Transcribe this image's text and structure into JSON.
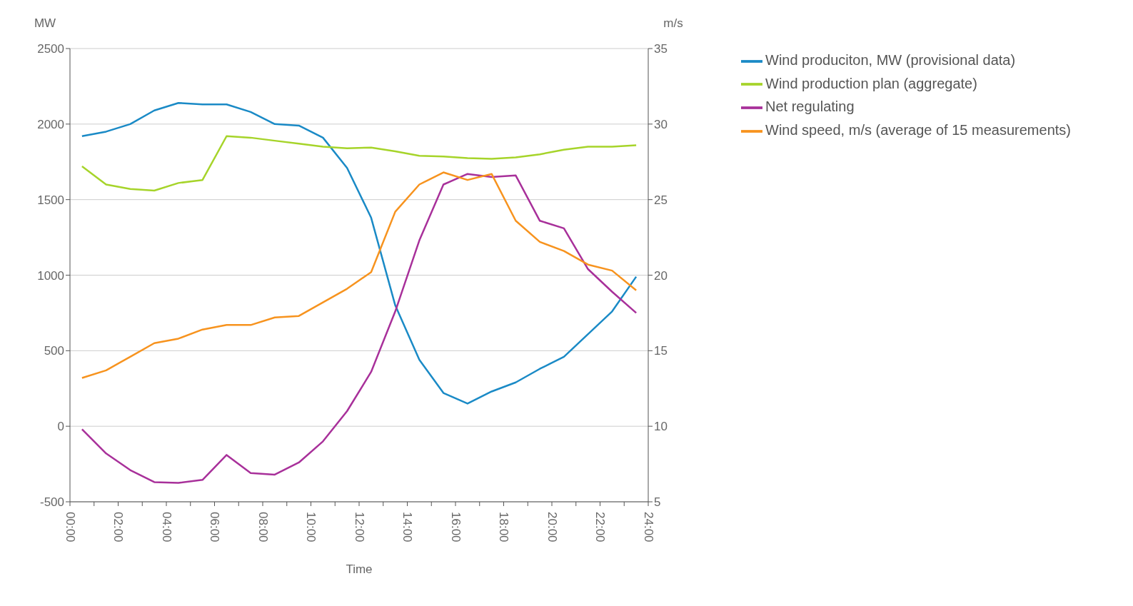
{
  "chart_data": {
    "type": "line",
    "xlabel": "Time",
    "ylabel": "MW",
    "y2label": "m/s",
    "x": [
      0.5,
      1.5,
      2.5,
      3.5,
      4.5,
      5.5,
      6.5,
      7.5,
      8.5,
      9.5,
      10.5,
      11.5,
      12.5,
      13.5,
      14.5,
      15.5,
      16.5,
      17.5,
      18.5,
      19.5,
      20.5,
      21.5,
      22.5,
      23.5
    ],
    "series": [
      {
        "name": "Wind produciton, MW (provisional data)",
        "color": "#1a8ac6",
        "values": [
          1920,
          1950,
          2000,
          2090,
          2140,
          2130,
          2130,
          2080,
          2000,
          1990,
          1910,
          1710,
          1380,
          800,
          440,
          220,
          150,
          230,
          290,
          380,
          460,
          610,
          760,
          990
        ]
      },
      {
        "name": "Wind production plan (aggregate)",
        "color": "#a6d42a",
        "values": [
          1720,
          1600,
          1570,
          1560,
          1610,
          1630,
          1920,
          1910,
          1890,
          1870,
          1850,
          1840,
          1845,
          1820,
          1790,
          1785,
          1775,
          1770,
          1780,
          1800,
          1830,
          1850,
          1850,
          1860
        ]
      },
      {
        "name": "Net regulating",
        "color": "#a8309a",
        "values": [
          -20,
          -180,
          -290,
          -370,
          -375,
          -355,
          -190,
          -310,
          -320,
          -240,
          -100,
          100,
          360,
          760,
          1230,
          1600,
          1670,
          1650,
          1660,
          1360,
          1310,
          1040,
          890,
          750
        ]
      },
      {
        "name": "Wind speed, m/s (average of 15 measurements)",
        "color": "#f7931e",
        "axis": "y2",
        "values": [
          13.2,
          13.7,
          14.6,
          15.5,
          15.8,
          16.4,
          16.7,
          16.7,
          17.2,
          17.3,
          18.2,
          19.1,
          20.2,
          24.2,
          26.0,
          26.8,
          26.3,
          26.7,
          23.6,
          22.2,
          21.6,
          20.7,
          20.3,
          19.0
        ]
      }
    ],
    "xlim": [
      0,
      24
    ],
    "xticks": [
      {
        "value": 0,
        "label": "00:00"
      },
      {
        "value": 1,
        "label": null
      },
      {
        "value": 2,
        "label": "02:00"
      },
      {
        "value": 3,
        "label": null
      },
      {
        "value": 4,
        "label": "04:00"
      },
      {
        "value": 5,
        "label": null
      },
      {
        "value": 6,
        "label": "06:00"
      },
      {
        "value": 7,
        "label": null
      },
      {
        "value": 8,
        "label": "08:00"
      },
      {
        "value": 9,
        "label": null
      },
      {
        "value": 10,
        "label": "10:00"
      },
      {
        "value": 11,
        "label": null
      },
      {
        "value": 12,
        "label": "12:00"
      },
      {
        "value": 13,
        "label": null
      },
      {
        "value": 14,
        "label": "14:00"
      },
      {
        "value": 15,
        "label": null
      },
      {
        "value": 16,
        "label": "16:00"
      },
      {
        "value": 17,
        "label": null
      },
      {
        "value": 18,
        "label": "18:00"
      },
      {
        "value": 19,
        "label": null
      },
      {
        "value": 20,
        "label": "20:00"
      },
      {
        "value": 21,
        "label": null
      },
      {
        "value": 22,
        "label": "22:00"
      },
      {
        "value": 23,
        "label": null
      },
      {
        "value": 24,
        "label": "24:00"
      }
    ],
    "ylim": [
      -500,
      2500
    ],
    "yticks": [
      -500,
      0,
      500,
      1000,
      1500,
      2000,
      2500
    ],
    "y2lim": [
      5,
      35
    ],
    "y2ticks": [
      5,
      10,
      15,
      20,
      25,
      30,
      35
    ],
    "grid": "y",
    "legend": "right",
    "marker": "none",
    "line_style": "solid"
  }
}
